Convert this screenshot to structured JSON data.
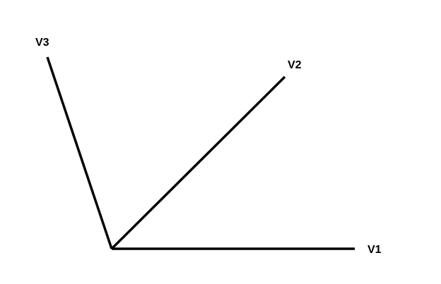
{
  "diagram": {
    "line_color": "#000000",
    "background_color": "#ffffff",
    "vectors": [
      {
        "id": "v1",
        "label": "V1"
      },
      {
        "id": "v2",
        "label": "V2"
      },
      {
        "id": "v3",
        "label": "V3"
      }
    ]
  }
}
